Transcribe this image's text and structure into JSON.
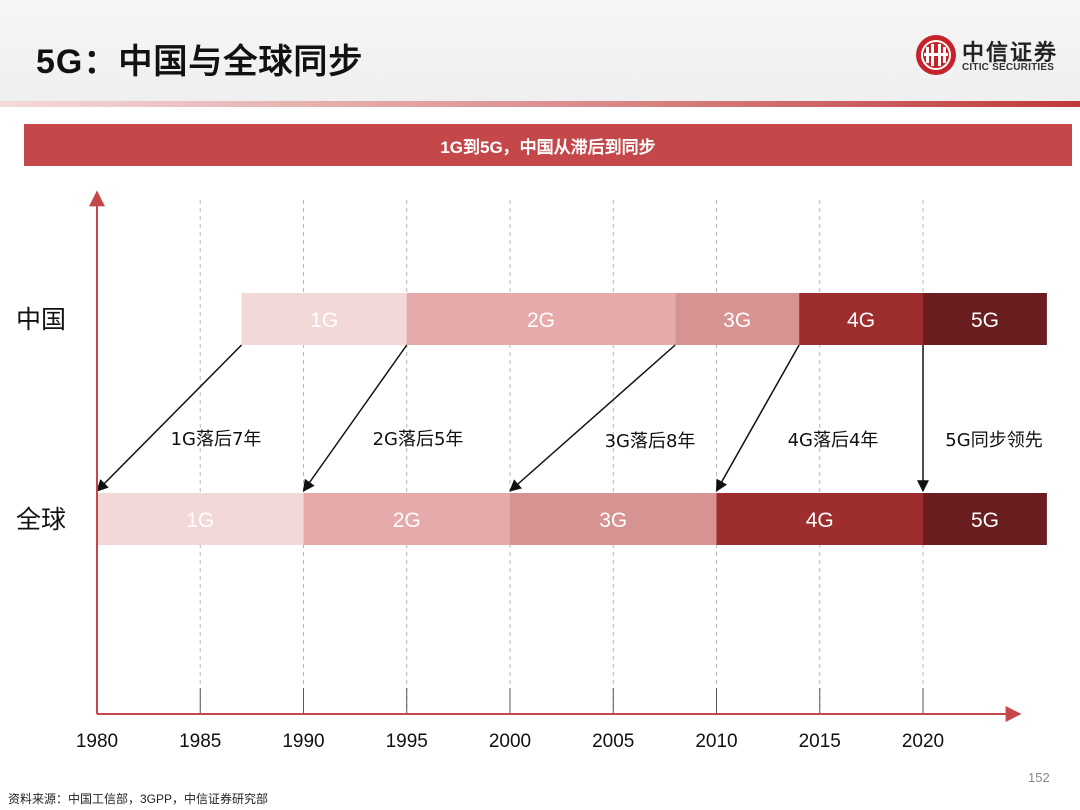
{
  "page_title": "5G：中国与全球同步",
  "logo": {
    "name": "中信证券",
    "english": "CITIC SECURITIES"
  },
  "banner": "1G到5G，中国从滞后到同步",
  "source": "资料来源：中国工信部，3GPP，中信证券研究部",
  "page_number": "152",
  "colors": {
    "accent": "#c4484a",
    "gen1": "#f3d8d8",
    "gen2": "#e6aaaa",
    "gen3": "#d79292",
    "gen4": "#9e2d2e",
    "gen5": "#6b1e20",
    "axis": "#c4484a"
  },
  "chart_data": {
    "type": "timeline",
    "x_axis": {
      "range": [
        1980,
        2025
      ],
      "ticks": [
        1980,
        1985,
        1990,
        1995,
        2000,
        2005,
        2010,
        2015,
        2020
      ],
      "dashed_gridlines": true
    },
    "rows": [
      {
        "label": "中国",
        "segments": [
          {
            "label": "1G",
            "start": 1987,
            "end": 1995,
            "color": "#f3d8d8"
          },
          {
            "label": "2G",
            "start": 1995,
            "end": 2008,
            "color": "#e6aaaa"
          },
          {
            "label": "3G",
            "start": 2008,
            "end": 2014,
            "color": "#d79292"
          },
          {
            "label": "4G",
            "start": 2014,
            "end": 2020,
            "color": "#9e2d2e"
          },
          {
            "label": "5G",
            "start": 2020,
            "end": 2026,
            "color": "#6b1e20"
          }
        ]
      },
      {
        "label": "全球",
        "segments": [
          {
            "label": "1G",
            "start": 1980,
            "end": 1990,
            "color": "#f3d8d8"
          },
          {
            "label": "2G",
            "start": 1990,
            "end": 2000,
            "color": "#e6aaaa"
          },
          {
            "label": "3G",
            "start": 2000,
            "end": 2010,
            "color": "#d79292"
          },
          {
            "label": "4G",
            "start": 2010,
            "end": 2020,
            "color": "#9e2d2e"
          },
          {
            "label": "5G",
            "start": 2020,
            "end": 2026,
            "color": "#6b1e20"
          }
        ]
      }
    ],
    "annotations": [
      {
        "text": "1G落后7年",
        "from": 1987,
        "to": 1980
      },
      {
        "text": "2G落后5年",
        "from": 1995,
        "to": 1990
      },
      {
        "text": "3G落后8年",
        "from": 2008,
        "to": 2000
      },
      {
        "text": "4G落后4年",
        "from": 2014,
        "to": 2010
      },
      {
        "text": "5G同步领先",
        "from": 2020,
        "to": 2020
      }
    ]
  }
}
